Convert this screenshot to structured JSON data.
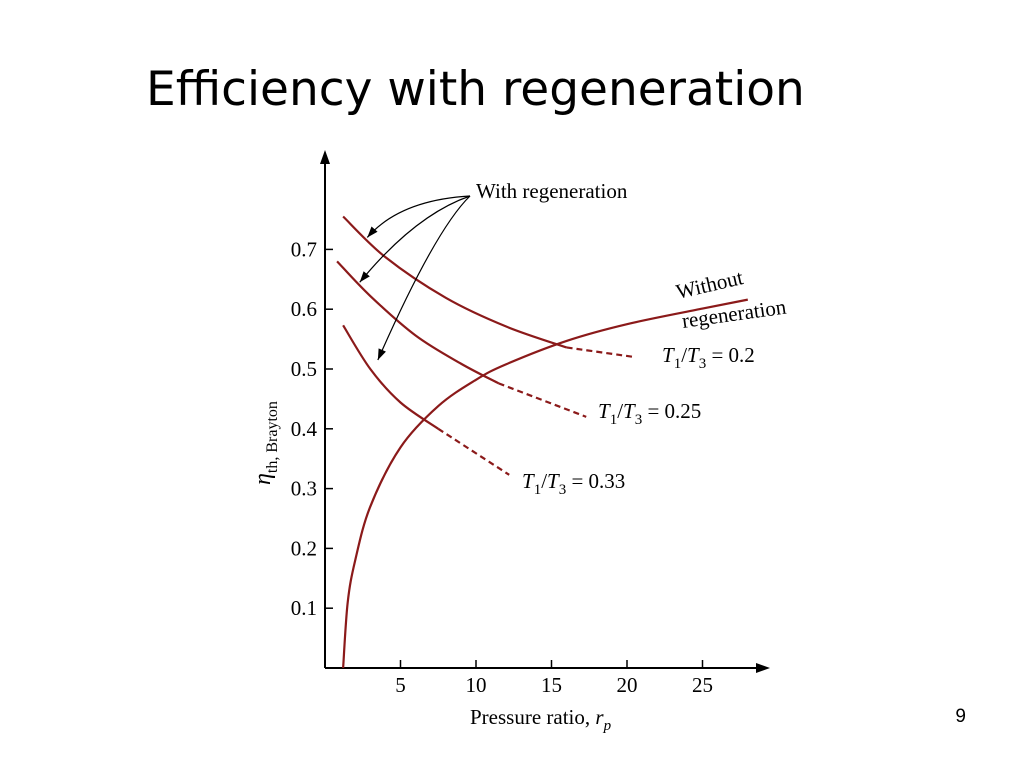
{
  "slide": {
    "title": "Efficiency with regeneration",
    "page_number": "9"
  },
  "colors": {
    "curve": "#8b1a1a",
    "axis": "#000000"
  },
  "chart_data": {
    "type": "line",
    "x_label": "Pressure ratio, r_p",
    "y_label": "η_th, Brayton",
    "xlim": [
      0,
      29
    ],
    "ylim": [
      0,
      0.8
    ],
    "x_ticks": [
      5,
      10,
      15,
      20,
      25
    ],
    "y_ticks": [
      0.1,
      0.2,
      0.3,
      0.4,
      0.5,
      0.6,
      0.7
    ],
    "grid": false,
    "annotations": {
      "with_regeneration": "With regeneration",
      "without_regeneration_line1": "Without",
      "without_regeneration_line2": "regeneration"
    },
    "series": [
      {
        "name": "T1/T3 = 0.2",
        "regeneration": true,
        "x": [
          1.2,
          4,
          8,
          12,
          16,
          20.5
        ],
        "y": [
          0.755,
          0.687,
          0.619,
          0.571,
          0.536,
          0.52
        ],
        "dashed_from_x": 16
      },
      {
        "name": "T1/T3 = 0.25",
        "regeneration": true,
        "x": [
          0.8,
          3,
          6,
          9,
          11.5,
          17.3
        ],
        "y": [
          0.68,
          0.622,
          0.556,
          0.509,
          0.476,
          0.42
        ],
        "dashed_from_x": 11.5
      },
      {
        "name": "T1/T3 = 0.33",
        "regeneration": true,
        "x": [
          1.2,
          3,
          5,
          7.5,
          12.2
        ],
        "y": [
          0.573,
          0.5,
          0.444,
          0.4,
          0.323
        ],
        "dashed_from_x": 7.5
      },
      {
        "name": "Without regeneration",
        "regeneration": false,
        "x": [
          1.2,
          1.5,
          2,
          3,
          5,
          7.5,
          10,
          12,
          16,
          20,
          25,
          28
        ],
        "y": [
          0.0,
          0.109,
          0.18,
          0.27,
          0.369,
          0.438,
          0.482,
          0.508,
          0.547,
          0.575,
          0.601,
          0.616
        ]
      }
    ],
    "curve_labels": [
      {
        "sub1": "1",
        "sub3": "3",
        "value": " = 0.2"
      },
      {
        "sub1": "1",
        "sub3": "3",
        "value": " = 0.25"
      },
      {
        "sub1": "1",
        "sub3": "3",
        "value": " = 0.33"
      }
    ]
  }
}
